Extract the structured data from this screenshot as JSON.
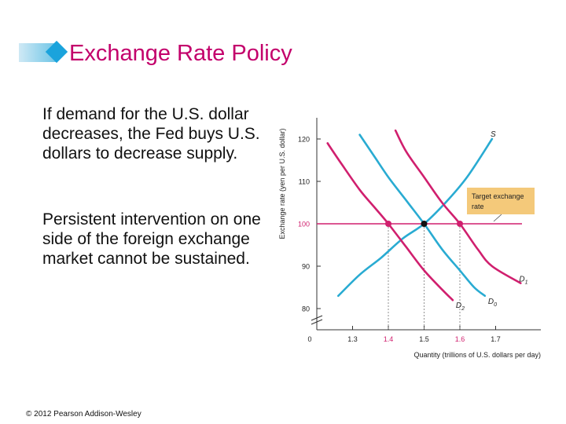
{
  "slide": {
    "title": "Exchange Rate Policy",
    "paragraphs": [
      "If demand for the U.S. dollar decreases, the Fed buys U.S. dollars to decrease supply.",
      "Persistent intervention on one side of the foreign exchange market cannot be sustained."
    ],
    "copyright": "© 2012 Pearson Addison-Wesley"
  },
  "colors": {
    "title": "#c3006b",
    "accent_blue": "#1aa3dc",
    "magenta": "#d01f6e",
    "cyan": "#29abd2",
    "target_box": "#f4c97a"
  },
  "chart_data": {
    "type": "line",
    "xlabel": "Quantity (trillions of U.S. dollars per day)",
    "ylabel": "Exchange rate (yen per U.S. dollar)",
    "xlim": [
      1.2,
      1.8
    ],
    "ylim": [
      75,
      125
    ],
    "x_ticks": [
      "0",
      "1.3",
      "1.4",
      "1.5",
      "1.6",
      "1.7"
    ],
    "x_tick_values": [
      1.2,
      1.3,
      1.4,
      1.5,
      1.6,
      1.7
    ],
    "y_ticks": [
      "80",
      "90",
      "100",
      "110",
      "120"
    ],
    "y_tick_values": [
      80,
      90,
      100,
      110,
      120
    ],
    "grid": false,
    "axis_break": true,
    "target_label": "Target exchange rate",
    "target_rate": 100,
    "series": [
      {
        "name": "S",
        "color": "#29abd2",
        "x": [
          1.26,
          1.32,
          1.38,
          1.44,
          1.5,
          1.56,
          1.62,
          1.69
        ],
        "y": [
          83,
          88,
          92,
          96.5,
          100,
          105,
          111,
          120
        ]
      },
      {
        "name": "D1",
        "color": "#d01f6e",
        "x": [
          1.42,
          1.45,
          1.5,
          1.55,
          1.6,
          1.65,
          1.69,
          1.77
        ],
        "y": [
          122,
          117,
          111,
          105,
          100,
          94,
          90,
          86
        ]
      },
      {
        "name": "D0",
        "color": "#29abd2",
        "x": [
          1.32,
          1.36,
          1.4,
          1.45,
          1.5,
          1.55,
          1.6,
          1.64,
          1.67
        ],
        "y": [
          121,
          116,
          111,
          105.5,
          100,
          94,
          89,
          85,
          83
        ]
      },
      {
        "name": "D2",
        "color": "#d01f6e",
        "x": [
          1.23,
          1.27,
          1.32,
          1.36,
          1.4,
          1.45,
          1.5,
          1.55,
          1.58
        ],
        "y": [
          119,
          114,
          108,
          104,
          100,
          94.5,
          89,
          84.5,
          82
        ]
      }
    ],
    "points": [
      {
        "x": 1.4,
        "y": 100,
        "color": "#d01f6e"
      },
      {
        "x": 1.5,
        "y": 100,
        "color": "#111111"
      },
      {
        "x": 1.6,
        "y": 100,
        "color": "#d01f6e"
      }
    ]
  }
}
